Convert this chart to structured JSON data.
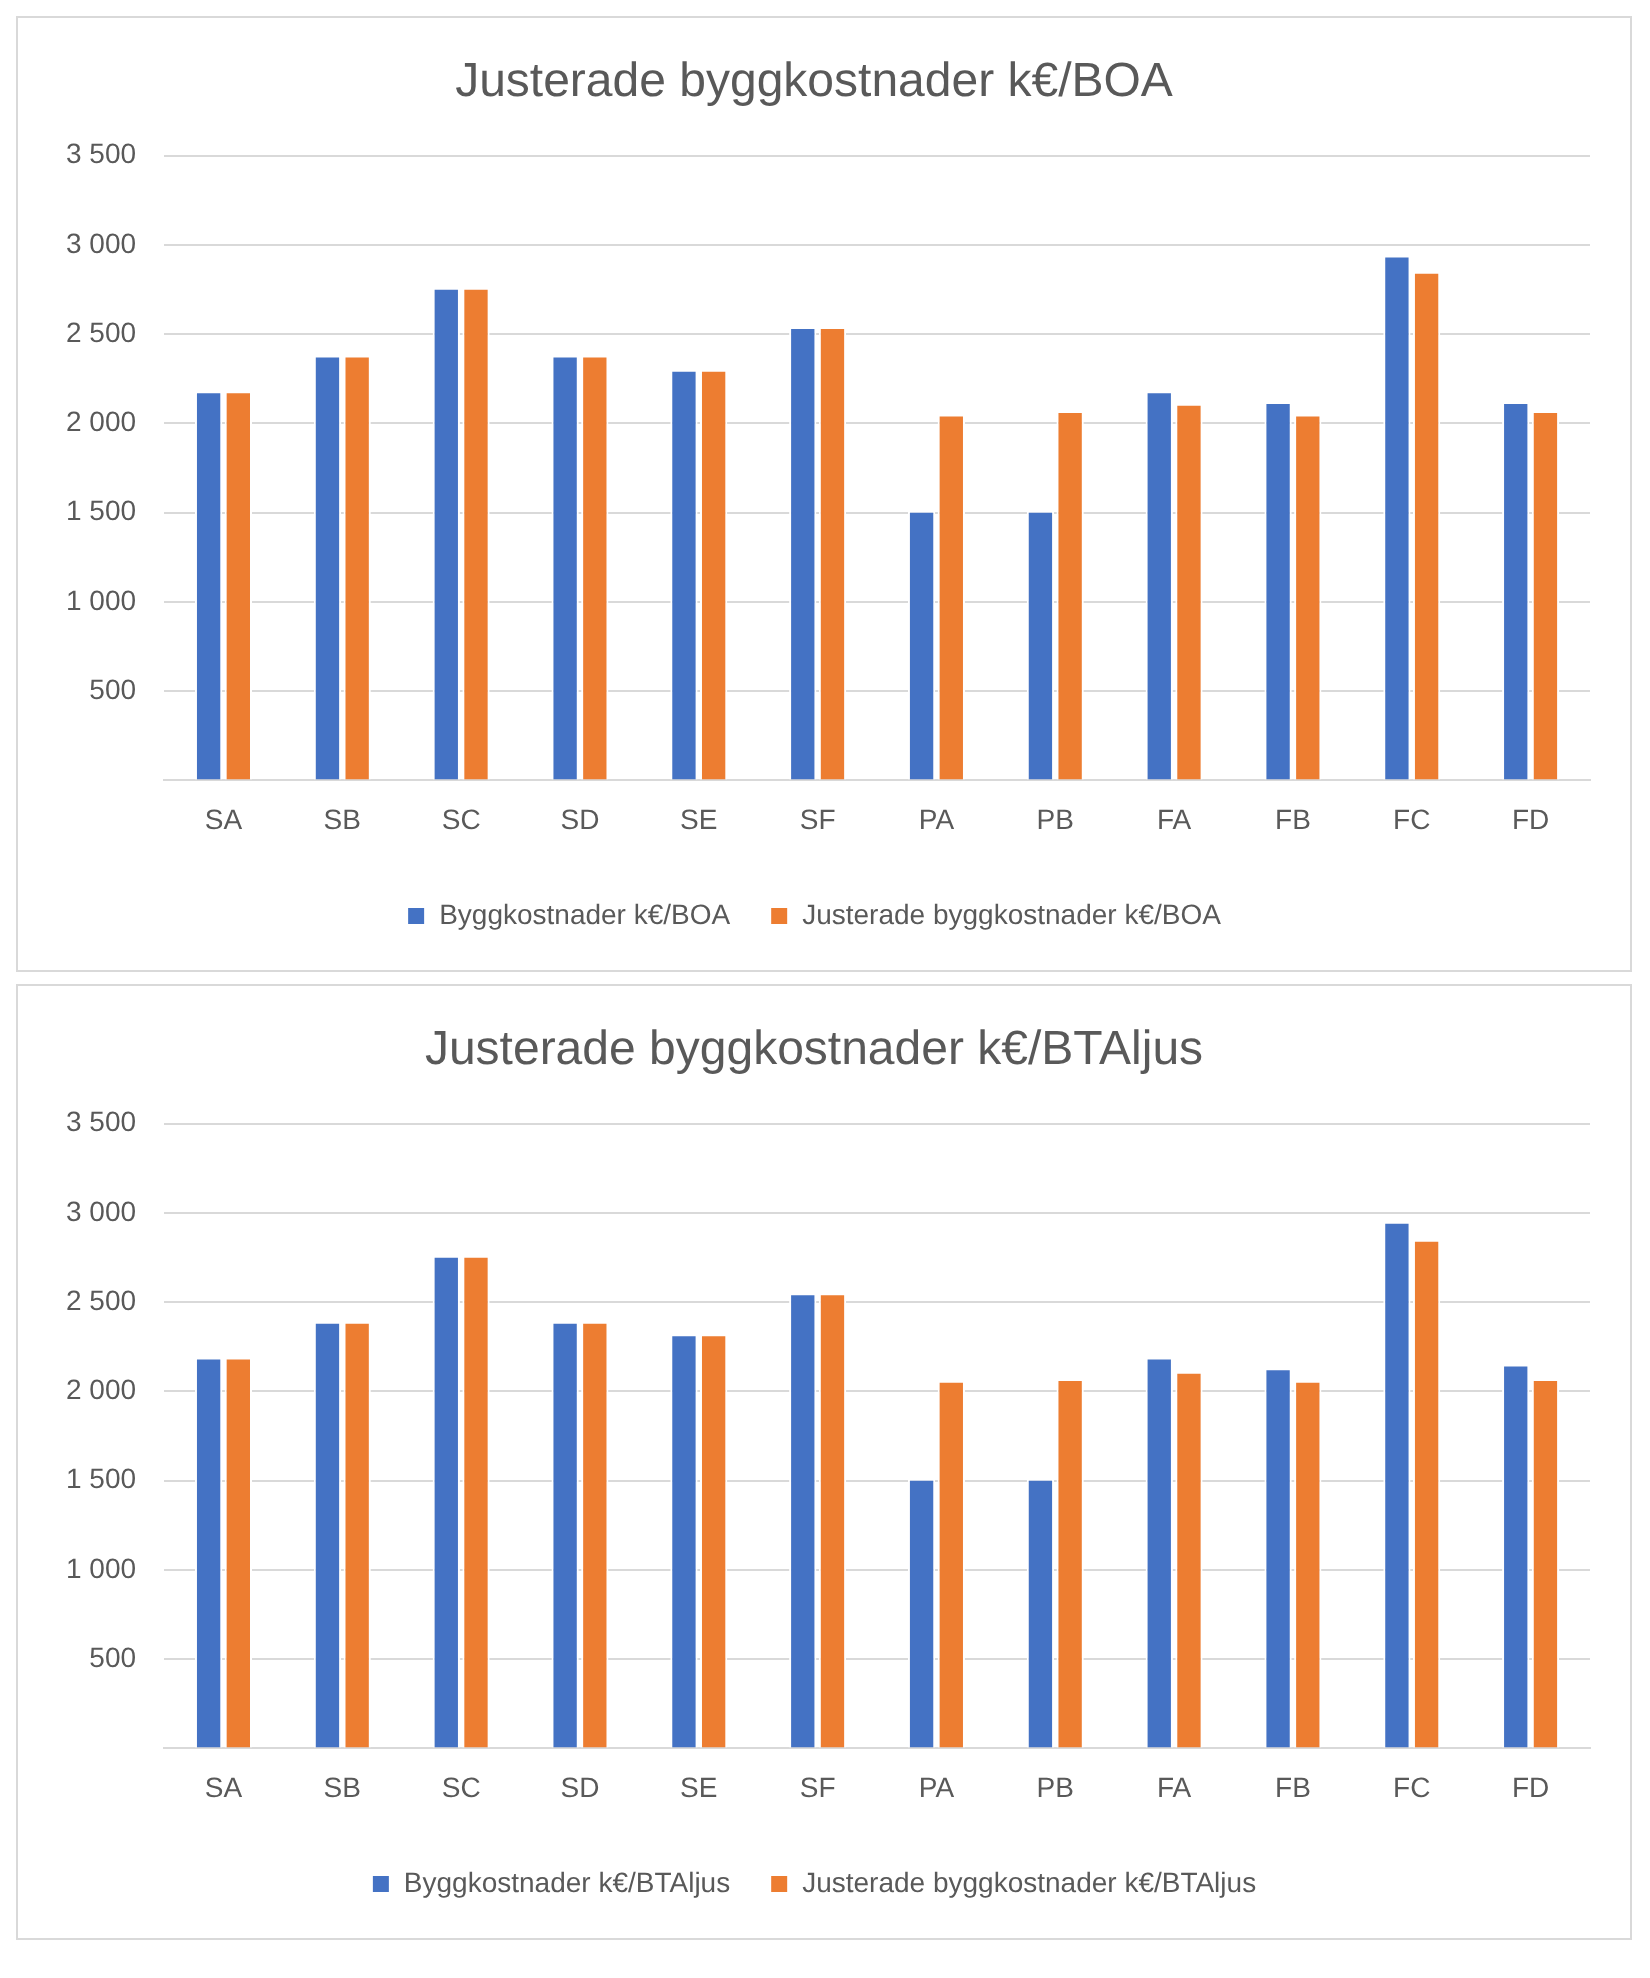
{
  "chart_data": [
    {
      "type": "bar",
      "title": "Justerade byggkostnader k€/BOA",
      "categories": [
        "SA",
        "SB",
        "SC",
        "SD",
        "SE",
        "SF",
        "PA",
        "PB",
        "FA",
        "FB",
        "FC",
        "FD"
      ],
      "series": [
        {
          "name": "Byggkostnader k€/BOA",
          "color": "#4472c4",
          "values": [
            2180,
            2380,
            2760,
            2380,
            2300,
            2540,
            1510,
            1510,
            2180,
            2120,
            2940,
            2120
          ]
        },
        {
          "name": "Justerade byggkostnader k€/BOA",
          "color": "#ed7d31",
          "values": [
            2180,
            2380,
            2760,
            2380,
            2300,
            2540,
            2050,
            2070,
            2110,
            2050,
            2850,
            2070
          ]
        }
      ],
      "ylim": [
        0,
        3500
      ],
      "yticks": [
        {
          "value": 0,
          "label": null
        },
        {
          "value": 500,
          "label": "500"
        },
        {
          "value": 1000,
          "label": "1 000"
        },
        {
          "value": 1500,
          "label": "1 500"
        },
        {
          "value": 2000,
          "label": "2 000"
        },
        {
          "value": 2500,
          "label": "2 500"
        },
        {
          "value": 3000,
          "label": "3 000"
        },
        {
          "value": 3500,
          "label": "3 500"
        }
      ],
      "grid": "y",
      "legend": "bottom"
    },
    {
      "type": "bar",
      "title": "Justerade byggkostnader k€/BTAljus",
      "categories": [
        "SA",
        "SB",
        "SC",
        "SD",
        "SE",
        "SF",
        "PA",
        "PB",
        "FA",
        "FB",
        "FC",
        "FD"
      ],
      "series": [
        {
          "name": "Byggkostnader k€/BTAljus",
          "color": "#4472c4",
          "values": [
            2190,
            2390,
            2760,
            2390,
            2320,
            2550,
            1510,
            1510,
            2190,
            2130,
            2950,
            2150
          ]
        },
        {
          "name": "Justerade byggkostnader k€/BTAljus",
          "color": "#ed7d31",
          "values": [
            2190,
            2390,
            2760,
            2390,
            2320,
            2550,
            2060,
            2070,
            2110,
            2060,
            2850,
            2070
          ]
        }
      ],
      "ylim": [
        0,
        3500
      ],
      "yticks": [
        {
          "value": 0,
          "label": null
        },
        {
          "value": 500,
          "label": "500"
        },
        {
          "value": 1000,
          "label": "1 000"
        },
        {
          "value": 1500,
          "label": "1 500"
        },
        {
          "value": 2000,
          "label": "2 000"
        },
        {
          "value": 2500,
          "label": "2 500"
        },
        {
          "value": 3000,
          "label": "3 000"
        },
        {
          "value": 3500,
          "label": "3 500"
        }
      ],
      "grid": "y",
      "legend": "bottom"
    }
  ]
}
